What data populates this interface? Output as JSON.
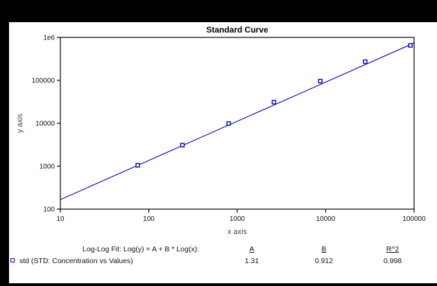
{
  "frame": {
    "background": "#000000",
    "canvas_background": "#ffffff"
  },
  "chart_data": {
    "type": "scatter",
    "title": "Standard Curve",
    "xlabel": "x axis",
    "ylabel": "y axis",
    "x_scale": "log",
    "y_scale": "log",
    "xlim": [
      10,
      100000
    ],
    "ylim": [
      100,
      1000000
    ],
    "grid": false,
    "x_tick_values": [
      10,
      100,
      1000,
      10000,
      100000
    ],
    "x_tick_labels": [
      "10",
      "100",
      "1000",
      "10000",
      "100000"
    ],
    "y_tick_values": [
      100,
      1000,
      10000,
      100000,
      1000000
    ],
    "y_tick_labels": [
      "100",
      "1000",
      "10000",
      "100000",
      "1e6"
    ],
    "series": [
      {
        "name": "std (STD: Concentration vs Values)",
        "marker": "open-square",
        "color": "#0000CC",
        "points": [
          [
            75,
            1050
          ],
          [
            240,
            3100
          ],
          [
            800,
            9900
          ],
          [
            2600,
            31000
          ],
          [
            8700,
            96000
          ],
          [
            28000,
            272000
          ],
          [
            91000,
            650000
          ]
        ]
      }
    ],
    "fit": {
      "type": "log-log",
      "A": 1.31,
      "B": 0.912,
      "R2": 0.998
    },
    "legend_position": "bottom-left"
  },
  "fit_table": {
    "label": "Log-Log Fit: Log(y) = A + B * Log(x):",
    "headers": {
      "a": "A",
      "b": "B",
      "r2": "R^2"
    },
    "row": {
      "legend": "std (STD: Concentration vs Values)",
      "a": "1.31",
      "b": "0.912",
      "r2": "0.998"
    }
  },
  "colors": {
    "series": "#0000CC",
    "axis": "#000000",
    "tick_text": "#111111",
    "axis_label_text": "#4a4a4a"
  }
}
